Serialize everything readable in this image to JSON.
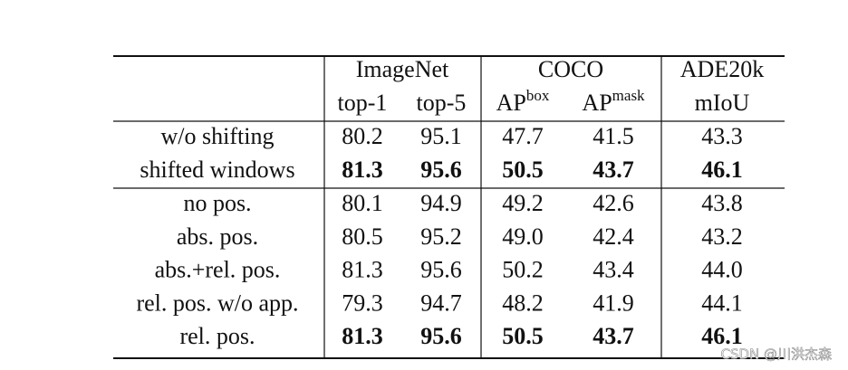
{
  "table": {
    "groups": [
      "ImageNet",
      "COCO",
      "ADE20k"
    ],
    "subheaders": [
      {
        "text": "top-1"
      },
      {
        "text": "top-5"
      },
      {
        "text": "AP",
        "sup": "box"
      },
      {
        "text": "AP",
        "sup": "mask"
      },
      {
        "text": "mIoU"
      }
    ],
    "sections": [
      {
        "rows": [
          {
            "label": "w/o shifting",
            "cells": [
              "80.2",
              "95.1",
              "47.7",
              "41.5",
              "43.3"
            ]
          },
          {
            "label": "shifted windows",
            "cells": [
              "81.3",
              "95.6",
              "50.5",
              "43.7",
              "46.1"
            ],
            "bold": true
          }
        ]
      },
      {
        "rows": [
          {
            "label": "no pos.",
            "cells": [
              "80.1",
              "94.9",
              "49.2",
              "42.6",
              "43.8"
            ]
          },
          {
            "label": "abs. pos.",
            "cells": [
              "80.5",
              "95.2",
              "49.0",
              "42.4",
              "43.2"
            ]
          },
          {
            "label": "abs.+rel. pos.",
            "cells": [
              "81.3",
              "95.6",
              "50.2",
              "43.4",
              "44.0"
            ]
          },
          {
            "label": "rel. pos. w/o app.",
            "cells": [
              "79.3",
              "94.7",
              "48.2",
              "41.9",
              "44.1"
            ]
          },
          {
            "label": "rel. pos.",
            "cells": [
              "81.3",
              "95.6",
              "50.5",
              "43.7",
              "46.1"
            ],
            "bold": true
          }
        ]
      }
    ]
  },
  "watermark": "CSDN @川洪杰森"
}
